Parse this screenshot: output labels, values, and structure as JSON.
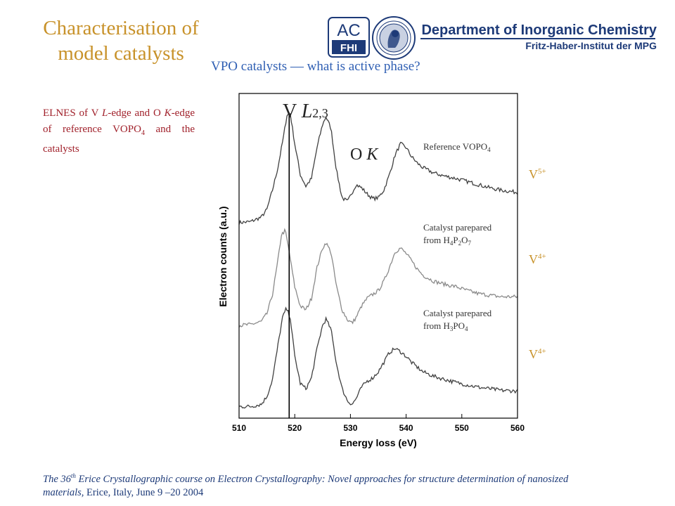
{
  "slide": {
    "title_line1": "Characterisation of",
    "title_line2": "model catalysts",
    "subtitle": "VPO catalysts — what is active phase?"
  },
  "header": {
    "logo_text_top": "AC",
    "logo_text_bottom": "FHI",
    "department": "Department of Inorganic Chemistry",
    "institute": "Fritz-Haber-Institut der MPG"
  },
  "caption": {
    "part1": "ELNES of V ",
    "part2": "L",
    "part3": "-edge and O ",
    "part4": "K",
    "part5": "-edge of reference VOPO",
    "part6": "4",
    "part7": " and the catalysts"
  },
  "oxidation_labels": {
    "v5": {
      "base": "V",
      "sup": "5+"
    },
    "v4a": {
      "base": "V",
      "sup": "4+"
    },
    "v4b": {
      "base": "V",
      "sup": "4+"
    }
  },
  "chart_data": {
    "type": "line",
    "xlabel": "Energy loss (eV)",
    "ylabel": "Electron counts (a.u.)",
    "xlim": [
      510,
      560
    ],
    "xticks": [
      510,
      520,
      530,
      540,
      550,
      560
    ],
    "edge_marker_x": 519,
    "annotations": {
      "v_edge": {
        "base": "V ",
        "italic": "L",
        "sub": "2,3"
      },
      "o_edge": {
        "base": "O ",
        "italic": "K"
      }
    },
    "series": [
      {
        "name": "Reference VOPO4",
        "label_lines": [
          "Reference VOPO",
          "4"
        ],
        "color": "#404040",
        "offset": 2.1,
        "x": [
          510,
          512,
          514,
          515,
          516,
          517,
          518,
          518.6,
          519.2,
          520,
          521,
          522,
          523,
          524,
          525,
          525.6,
          526.5,
          527.5,
          528.5,
          529.5,
          530.3,
          531,
          532,
          533,
          534,
          535,
          536,
          537,
          538,
          539,
          540,
          541,
          542,
          543,
          545,
          547,
          549,
          551,
          553,
          555,
          557,
          560
        ],
        "values": [
          0.33,
          0.34,
          0.4,
          0.5,
          0.75,
          1.05,
          1.45,
          1.72,
          1.74,
          1.35,
          0.95,
          0.8,
          0.9,
          1.3,
          1.6,
          1.7,
          1.55,
          1.0,
          0.65,
          0.6,
          0.72,
          0.82,
          0.78,
          0.7,
          0.64,
          0.65,
          0.75,
          0.95,
          1.2,
          1.35,
          1.3,
          1.18,
          1.1,
          1.04,
          0.97,
          0.93,
          0.9,
          0.86,
          0.82,
          0.78,
          0.75,
          0.72
        ]
      },
      {
        "name": "Catalyst parepared from H4P2O7",
        "label_lines": [
          "Catalyst parepared",
          "from H",
          "4",
          "P",
          "2",
          "O",
          "7"
        ],
        "color": "#8a8a8a",
        "offset": 1.05,
        "x": [
          510,
          512,
          514,
          515,
          516,
          517,
          517.6,
          518.3,
          519,
          520,
          521,
          522,
          523,
          524,
          525,
          525.6,
          526.5,
          527.5,
          528.5,
          529.5,
          530.3,
          531,
          532,
          533,
          534,
          535,
          536,
          537,
          538,
          539,
          540,
          541,
          542,
          543,
          545,
          547,
          549,
          551,
          553,
          555,
          557,
          560
        ],
        "values": [
          0.05,
          0.06,
          0.1,
          0.2,
          0.45,
          0.9,
          1.22,
          1.28,
          1.0,
          0.55,
          0.3,
          0.25,
          0.4,
          0.8,
          1.05,
          1.12,
          1.0,
          0.55,
          0.25,
          0.12,
          0.08,
          0.15,
          0.3,
          0.4,
          0.45,
          0.5,
          0.62,
          0.8,
          1.0,
          1.05,
          0.98,
          0.88,
          0.78,
          0.7,
          0.62,
          0.58,
          0.55,
          0.5,
          0.46,
          0.44,
          0.42,
          0.42
        ]
      },
      {
        "name": "Catalyst parepared from H3PO4",
        "label_lines": [
          "Catalyst parepared",
          "from H",
          "3",
          "PO",
          "4"
        ],
        "color": "#404040",
        "offset": 0.0,
        "x": [
          510,
          512,
          514,
          515,
          516,
          517,
          517.8,
          518.5,
          519.2,
          520,
          521,
          522,
          523,
          524,
          525,
          525.6,
          526.5,
          527.5,
          528.5,
          529.5,
          530.3,
          531,
          532,
          533,
          534,
          535,
          536,
          537,
          538,
          539,
          540,
          541,
          542,
          543,
          545,
          547,
          549,
          551,
          553,
          555,
          557,
          560
        ],
        "values": [
          0.05,
          0.05,
          0.08,
          0.18,
          0.4,
          0.85,
          1.2,
          1.32,
          1.2,
          0.7,
          0.35,
          0.28,
          0.42,
          0.8,
          1.1,
          1.18,
          1.05,
          0.6,
          0.28,
          0.12,
          0.08,
          0.15,
          0.3,
          0.38,
          0.42,
          0.5,
          0.62,
          0.75,
          0.8,
          0.76,
          0.7,
          0.62,
          0.56,
          0.5,
          0.44,
          0.4,
          0.36,
          0.33,
          0.3,
          0.28,
          0.26,
          0.25
        ]
      }
    ]
  },
  "footer": {
    "text1": "The 36",
    "text_sup": "th",
    "text2": " Erice Crystallographic course on Electron Crystallography: Novel approaches for structure determination of nanosized materials,",
    "text3": " Erice, Italy, June 9 –20 2004"
  }
}
